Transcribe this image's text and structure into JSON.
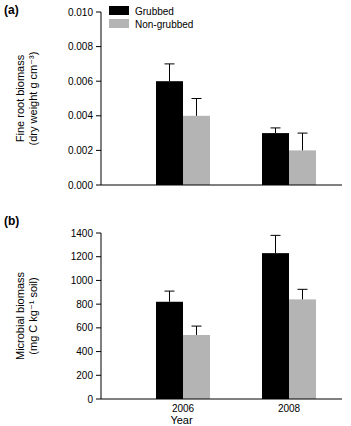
{
  "chart_data": [
    {
      "type": "bar",
      "title": "(a)",
      "y_label": "Fine root biomass\n(dry weight  g cm⁻³)",
      "categories": [
        "2006",
        "2008"
      ],
      "series": [
        {
          "name": "Grubbed",
          "color": "#000000",
          "values": [
            0.006,
            0.003
          ],
          "errors": [
            0.001,
            0.0003
          ]
        },
        {
          "name": "Non-grubbed",
          "color": "#b4b4b4",
          "values": [
            0.004,
            0.002
          ],
          "errors": [
            0.001,
            0.001
          ]
        }
      ],
      "ylim": [
        0,
        0.01
      ],
      "yticks": [
        {
          "value": 0,
          "label": "0.000"
        },
        {
          "value": 0.002,
          "label": "0.002"
        },
        {
          "value": 0.004,
          "label": "0.004"
        },
        {
          "value": 0.006,
          "label": "0.006"
        },
        {
          "value": 0.008,
          "label": "0.008"
        },
        {
          "value": 0.01,
          "label": "0.010"
        }
      ],
      "legend": "upper left",
      "grid": false,
      "tick_labels": "y"
    },
    {
      "type": "bar",
      "title": "(b)",
      "y_label": "Microbial biomass\n(mg C kg⁻¹ soil)",
      "x_label": "Year",
      "categories": [
        "2006",
        "2008"
      ],
      "series": [
        {
          "name": "Grubbed",
          "color": "#000000",
          "values": [
            820,
            1230
          ],
          "errors": [
            90,
            150
          ]
        },
        {
          "name": "Non-grubbed",
          "color": "#b4b4b4",
          "values": [
            540,
            840
          ],
          "errors": [
            75,
            85
          ]
        }
      ],
      "ylim": [
        0,
        1400
      ],
      "yticks": [
        0,
        200,
        400,
        600,
        800,
        1000,
        1200,
        1400
      ],
      "grid": false
    }
  ]
}
